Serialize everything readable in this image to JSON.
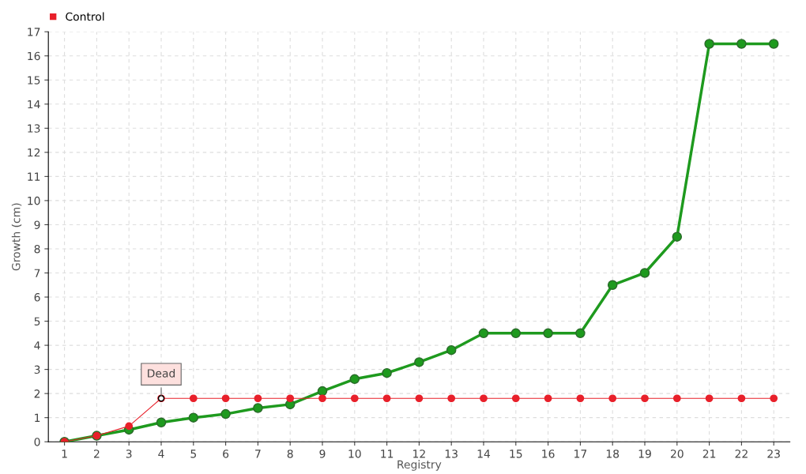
{
  "chart_data": {
    "type": "line",
    "xlabel": "Registry",
    "ylabel": "Growth (cm)",
    "categories": [
      "1",
      "2",
      "3",
      "4",
      "5",
      "6",
      "7",
      "8",
      "9",
      "10",
      "11",
      "12",
      "13",
      "14",
      "15",
      "16",
      "17",
      "18",
      "19",
      "20",
      "21",
      "22",
      "23"
    ],
    "series": [
      {
        "color": "#1e9a1e",
        "values": [
          0,
          0.25,
          0.5,
          0.8,
          1.0,
          1.15,
          1.4,
          1.55,
          2.1,
          2.6,
          2.85,
          3.3,
          3.8,
          4.5,
          4.5,
          4.5,
          4.5,
          6.5,
          7.0,
          8.5,
          16.5,
          16.5,
          16.5
        ]
      },
      {
        "name": "Control",
        "color": "#e8202a",
        "values": [
          0,
          0.25,
          0.65,
          1.8,
          1.8,
          1.8,
          1.8,
          1.8,
          1.8,
          1.8,
          1.8,
          1.8,
          1.8,
          1.8,
          1.8,
          1.8,
          1.8,
          1.8,
          1.8,
          1.8,
          1.8,
          1.8,
          1.8
        ]
      }
    ],
    "ylim": [
      0,
      17
    ],
    "yticks": [
      0,
      1,
      2,
      3,
      4,
      5,
      6,
      7,
      8,
      9,
      10,
      11,
      12,
      13,
      14,
      15,
      16,
      17
    ],
    "annotations": [
      {
        "text": "Dead",
        "x": "4",
        "y": 1.8
      }
    ],
    "grid": true,
    "legend": "top left",
    "marker": "circle",
    "line_style": "solid"
  }
}
